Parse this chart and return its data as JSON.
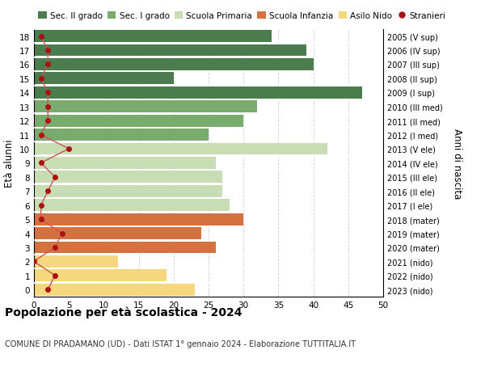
{
  "ages": [
    18,
    17,
    16,
    15,
    14,
    13,
    12,
    11,
    10,
    9,
    8,
    7,
    6,
    5,
    4,
    3,
    2,
    1,
    0
  ],
  "bar_values": [
    34,
    39,
    40,
    20,
    47,
    32,
    30,
    25,
    42,
    26,
    27,
    27,
    28,
    30,
    24,
    26,
    12,
    19,
    23
  ],
  "bar_colors": [
    "#4a7c4e",
    "#4a7c4e",
    "#4a7c4e",
    "#4a7c4e",
    "#4a7c4e",
    "#7aab6e",
    "#7aab6e",
    "#7aab6e",
    "#c8ddb4",
    "#c8ddb4",
    "#c8ddb4",
    "#c8ddb4",
    "#c8ddb4",
    "#d4713e",
    "#d4713e",
    "#d4713e",
    "#f5d87e",
    "#f5d87e",
    "#f5d87e"
  ],
  "stranieri_values": [
    1,
    2,
    2,
    1,
    2,
    2,
    2,
    1,
    5,
    1,
    3,
    2,
    1,
    1,
    4,
    3,
    0,
    3,
    2
  ],
  "right_labels": [
    "2005 (V sup)",
    "2006 (IV sup)",
    "2007 (III sup)",
    "2008 (II sup)",
    "2009 (I sup)",
    "2010 (III med)",
    "2011 (II med)",
    "2012 (I med)",
    "2013 (V ele)",
    "2014 (IV ele)",
    "2015 (III ele)",
    "2016 (II ele)",
    "2017 (I ele)",
    "2018 (mater)",
    "2019 (mater)",
    "2020 (mater)",
    "2021 (nido)",
    "2022 (nido)",
    "2023 (nido)"
  ],
  "legend_labels": [
    "Sec. II grado",
    "Sec. I grado",
    "Scuola Primaria",
    "Scuola Infanzia",
    "Asilo Nido",
    "Stranieri"
  ],
  "legend_colors": [
    "#4a7c4e",
    "#7aab6e",
    "#c8ddb4",
    "#d4713e",
    "#f5d87e",
    "#aa1111"
  ],
  "ylabel_left": "Età alunni",
  "ylabel_right": "Anni di nascita",
  "xlim": [
    0,
    50
  ],
  "xticks": [
    0,
    5,
    10,
    15,
    20,
    25,
    30,
    35,
    40,
    45,
    50
  ],
  "title": "Popolazione per età scolastica - 2024",
  "subtitle": "COMUNE DI PRADAMANO (UD) - Dati ISTAT 1° gennaio 2024 - Elaborazione TUTTITALIA.IT",
  "bg_color": "#ffffff",
  "grid_color": "#cccccc",
  "stranieri_color": "#aa1111",
  "stranieri_line_color": "#cc5555",
  "bar_height": 0.85
}
